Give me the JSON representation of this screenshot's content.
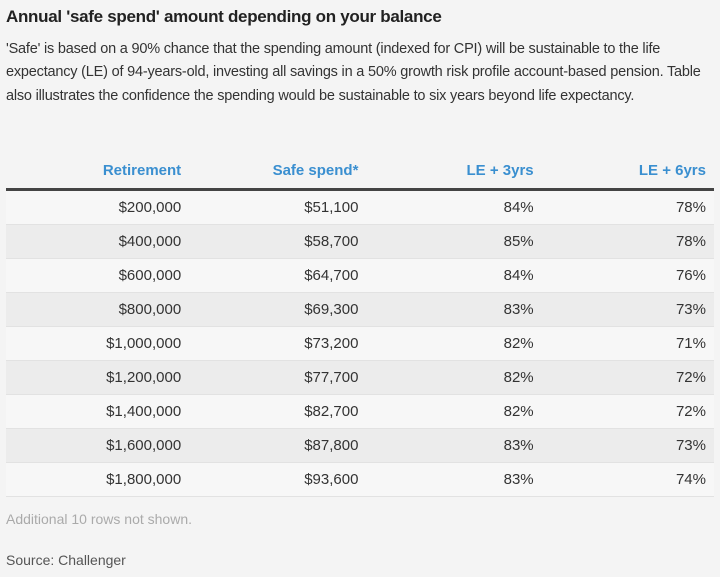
{
  "title": "Annual 'safe spend' amount depending on your balance",
  "description": "'Safe' is based on a 90% chance that the spending amount (indexed for CPI) will be sustainable to the life expectancy (LE) of 94-years-old, investing all savings in a 50% growth risk profile account-based pension. Table also illustrates the confidence the spending would be sustainable to six years beyond life expectancy.",
  "colors": {
    "header_text": "#3a8fd0",
    "background": "#f4f4f4"
  },
  "table": {
    "headers": [
      "Retirement",
      "Safe spend*",
      "LE + 3yrs",
      "LE + 6yrs"
    ],
    "rows": [
      [
        "$200,000",
        "$51,100",
        "84%",
        "78%"
      ],
      [
        "$400,000",
        "$58,700",
        "85%",
        "78%"
      ],
      [
        "$600,000",
        "$64,700",
        "84%",
        "76%"
      ],
      [
        "$800,000",
        "$69,300",
        "83%",
        "73%"
      ],
      [
        "$1,000,000",
        "$73,200",
        "82%",
        "71%"
      ],
      [
        "$1,200,000",
        "$77,700",
        "82%",
        "72%"
      ],
      [
        "$1,400,000",
        "$82,700",
        "82%",
        "72%"
      ],
      [
        "$1,600,000",
        "$87,800",
        "83%",
        "73%"
      ],
      [
        "$1,800,000",
        "$93,600",
        "83%",
        "74%"
      ]
    ]
  },
  "note": "Additional 10 rows not shown.",
  "source": "Source: Challenger"
}
